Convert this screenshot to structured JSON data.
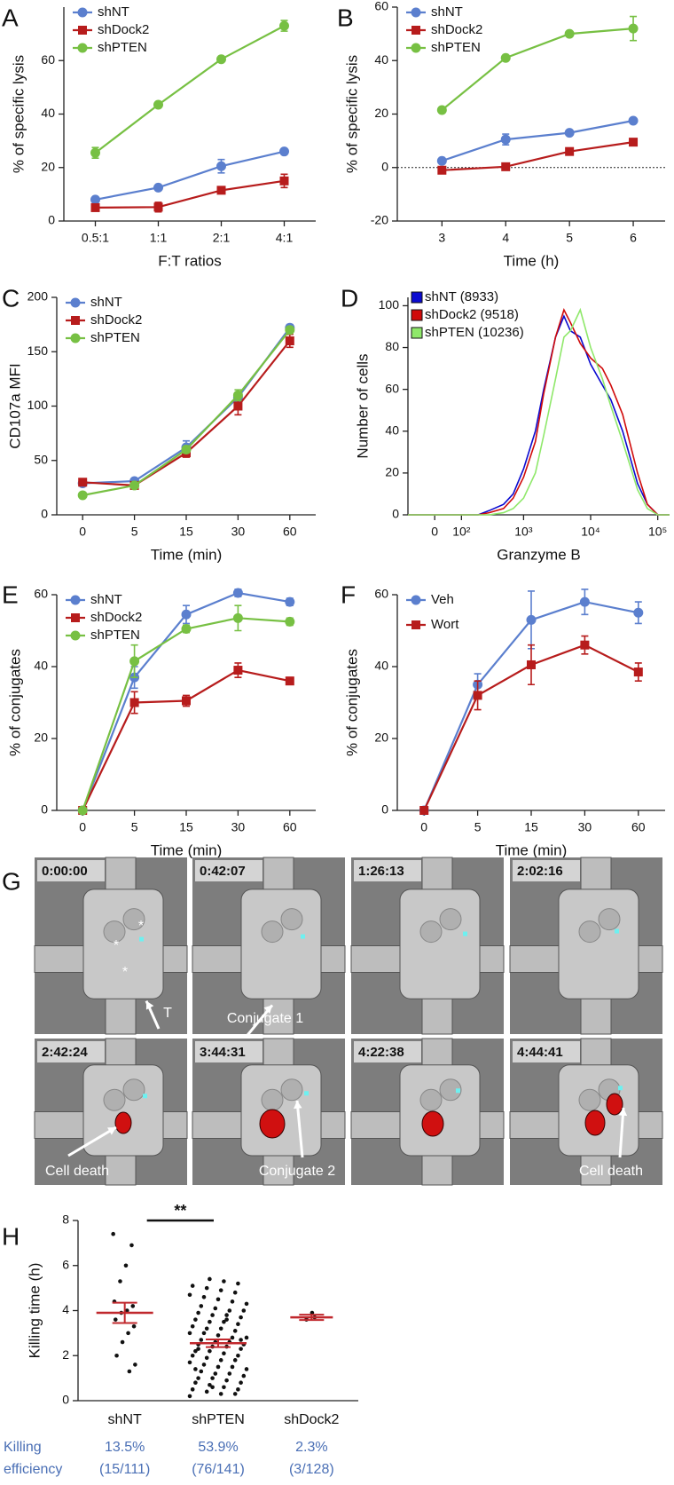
{
  "chart_data": [
    {
      "type": "line",
      "panel": "A",
      "ylabel": "% of specific lysis",
      "xlabel": "F:T ratios",
      "categories": [
        "0.5:1",
        "1:1",
        "2:1",
        "4:1"
      ],
      "ylim": [
        0,
        80
      ],
      "yticks": [
        0,
        20,
        40,
        60
      ],
      "legend": "upper left",
      "series": [
        {
          "name": "shNT",
          "color": "#5b7fce",
          "marker": "circle",
          "values": [
            8,
            12.5,
            20.5,
            26
          ],
          "errors": [
            1,
            1,
            2.5,
            1
          ]
        },
        {
          "name": "shDock2",
          "color": "#b71c1c",
          "marker": "square",
          "values": [
            5,
            5.2,
            11.5,
            15
          ],
          "errors": [
            1,
            1.8,
            1,
            2.5
          ]
        },
        {
          "name": "shPTEN",
          "color": "#77c043",
          "marker": "circle",
          "values": [
            25.5,
            43.5,
            60.5,
            73
          ],
          "errors": [
            2,
            0.8,
            0.8,
            2
          ]
        }
      ]
    },
    {
      "type": "line",
      "panel": "B",
      "ylabel": "% of specific lysis",
      "xlabel": "Time (h)",
      "x": [
        3,
        4,
        5,
        6
      ],
      "xlim": [
        2.3,
        6.5
      ],
      "xticks": [
        3,
        4,
        5,
        6
      ],
      "ylim": [
        -20,
        60
      ],
      "yticks": [
        -20,
        0,
        20,
        40,
        60
      ],
      "reference_line": 0,
      "legend": "upper left",
      "series": [
        {
          "name": "shNT",
          "color": "#5b7fce",
          "marker": "circle",
          "values": [
            2.5,
            10.5,
            13,
            17.5
          ],
          "errors": [
            0.5,
            2,
            0.5,
            0.5
          ]
        },
        {
          "name": "shDock2",
          "color": "#b71c1c",
          "marker": "square",
          "values": [
            -1,
            0.3,
            6,
            9.5
          ],
          "errors": [
            0.5,
            0.5,
            0.5,
            0.5
          ]
        },
        {
          "name": "shPTEN",
          "color": "#77c043",
          "marker": "circle",
          "values": [
            21.5,
            41,
            50,
            52
          ],
          "errors": [
            0.5,
            0.5,
            0.5,
            4.5
          ]
        }
      ]
    },
    {
      "type": "line",
      "panel": "C",
      "ylabel": "CD107a MFI",
      "xlabel": "Time (min)",
      "categories": [
        "0",
        "5",
        "15",
        "30",
        "60"
      ],
      "ylim": [
        0,
        200
      ],
      "yticks": [
        0,
        50,
        100,
        150,
        200
      ],
      "legend": "upper left",
      "series": [
        {
          "name": "shNT",
          "color": "#5b7fce",
          "marker": "circle",
          "values": [
            29,
            31,
            62,
            108,
            172
          ],
          "errors": [
            2,
            2,
            6,
            4,
            3
          ]
        },
        {
          "name": "shDock2",
          "color": "#b71c1c",
          "marker": "square",
          "values": [
            30,
            27,
            57,
            100,
            160
          ],
          "errors": [
            3,
            2,
            4,
            8,
            6
          ]
        },
        {
          "name": "shPTEN",
          "color": "#77c043",
          "marker": "circle",
          "values": [
            18,
            27,
            60,
            110,
            170
          ],
          "errors": [
            1,
            1,
            3,
            5,
            3
          ]
        }
      ]
    },
    {
      "type": "line",
      "panel": "D",
      "ylabel": "Number of cells",
      "xlabel": "Granzyme B",
      "xscale": "biexponential",
      "x": [
        -100,
        0,
        100,
        200,
        300,
        500,
        700,
        1000,
        1500,
        2000,
        3000,
        4000,
        5000,
        7000,
        10000,
        15000,
        20000,
        30000,
        50000,
        70000,
        100000,
        150000
      ],
      "xlim": [
        -100,
        150000
      ],
      "xticks": [
        0,
        {
          "value": 100,
          "label": "10²"
        },
        {
          "value": 1000,
          "label": "10³"
        },
        {
          "value": 10000,
          "label": "10⁴"
        },
        {
          "value": 100000,
          "label": "10⁵"
        }
      ],
      "ylim": [
        0,
        104
      ],
      "yticks": [
        0,
        20,
        40,
        60,
        80,
        100
      ],
      "legend": "upper left",
      "series": [
        {
          "name": "shNT (8933)",
          "color": "#0a0ad0",
          "values": [
            0,
            0,
            0,
            0,
            2,
            5,
            10,
            22,
            40,
            60,
            85,
            95,
            88,
            85,
            72,
            62,
            55,
            40,
            15,
            5,
            0,
            0
          ]
        },
        {
          "name": "shDock2 (9518)",
          "color": "#d00a0a",
          "values": [
            0,
            0,
            0,
            0,
            1,
            3,
            8,
            18,
            35,
            58,
            85,
            98,
            92,
            82,
            75,
            70,
            62,
            48,
            20,
            5,
            0,
            0
          ]
        },
        {
          "name": "shPTEN (10236)",
          "color": "#8fe86a",
          "values": [
            0,
            0,
            0,
            0,
            0,
            1,
            3,
            8,
            20,
            38,
            65,
            85,
            88,
            98,
            80,
            65,
            52,
            35,
            12,
            3,
            0,
            0
          ]
        }
      ]
    },
    {
      "type": "line",
      "panel": "E",
      "ylabel": "% of conjugates",
      "xlabel": "Time (min)",
      "categories": [
        "0",
        "5",
        "15",
        "30",
        "60"
      ],
      "ylim": [
        0,
        60
      ],
      "yticks": [
        0,
        20,
        40,
        60
      ],
      "legend": "upper left",
      "series": [
        {
          "name": "shNT",
          "color": "#5b7fce",
          "marker": "circle",
          "values": [
            0,
            37,
            54.5,
            60.5,
            58
          ],
          "errors": [
            0,
            3,
            2.5,
            1,
            1
          ]
        },
        {
          "name": "shDock2",
          "color": "#b71c1c",
          "marker": "square",
          "values": [
            0,
            30,
            30.5,
            39,
            36
          ],
          "errors": [
            0,
            3,
            1.5,
            2,
            1
          ]
        },
        {
          "name": "shPTEN",
          "color": "#77c043",
          "marker": "circle",
          "values": [
            0,
            41.5,
            50.5,
            53.5,
            52.5
          ],
          "errors": [
            0,
            4.5,
            1,
            3.5,
            1
          ]
        }
      ]
    },
    {
      "type": "line",
      "panel": "F",
      "ylabel": "% of conjugates",
      "xlabel": "Time (min)",
      "categories": [
        "0",
        "5",
        "15",
        "30",
        "60"
      ],
      "ylim": [
        0,
        60
      ],
      "yticks": [
        0,
        20,
        40,
        60
      ],
      "legend": "upper left",
      "series": [
        {
          "name": "Veh",
          "color": "#5b7fce",
          "marker": "circle",
          "values": [
            0,
            35,
            53,
            58,
            55
          ],
          "errors": [
            0,
            3,
            8,
            3.5,
            3
          ]
        },
        {
          "name": "Wort",
          "color": "#b71c1c",
          "marker": "square",
          "values": [
            0,
            32,
            40.5,
            46,
            38.5
          ],
          "errors": [
            0,
            4,
            5.5,
            2.5,
            2.5
          ]
        }
      ]
    },
    {
      "type": "dot",
      "panel": "H",
      "ylabel": "Killing time (h)",
      "categories": [
        "shNT",
        "shPTEN",
        "shDock2"
      ],
      "ylim": [
        0,
        8
      ],
      "yticks": [
        0,
        2,
        4,
        6,
        8
      ],
      "annotation": "**",
      "color": "#111111",
      "mean_color": "#c0282d",
      "groups": [
        [
          7.4,
          6.9,
          6.0,
          5.3,
          4.4,
          4.2,
          4.0,
          3.9,
          3.6,
          3.3,
          3.0,
          2.6,
          2.0,
          1.6,
          1.3
        ],
        [
          0.2,
          0.3,
          0.3,
          0.4,
          0.5,
          0.5,
          0.6,
          0.7,
          0.8,
          0.8,
          0.9,
          1.0,
          1.0,
          1.1,
          1.2,
          1.2,
          1.3,
          1.4,
          1.5,
          1.5,
          1.6,
          1.7,
          1.8,
          1.8,
          1.9,
          2.0,
          2.0,
          2.1,
          2.2,
          2.2,
          2.3,
          2.4,
          2.4,
          2.5,
          2.5,
          2.6,
          2.6,
          2.7,
          2.8,
          2.8,
          2.9,
          3.0,
          3.0,
          3.1,
          3.2,
          3.2,
          3.3,
          3.4,
          3.5,
          3.5,
          3.6,
          3.7,
          3.8,
          3.8,
          3.9,
          4.0,
          4.0,
          4.1,
          4.2,
          4.3,
          4.4,
          4.5,
          4.6,
          4.7,
          4.8,
          4.9,
          5.0,
          5.1,
          5.2,
          5.3,
          5.4,
          1.4,
          2.7,
          3.6,
          0.6,
          2.3
        ],
        [
          3.6,
          3.7,
          3.9
        ]
      ],
      "means": [
        3.9,
        2.55,
        3.7
      ],
      "sems": [
        0.45,
        0.17,
        0.12
      ],
      "efficiency_title": [
        "Killing",
        "efficiency"
      ],
      "efficiency": [
        "13.5%",
        "53.9%",
        "2.3%"
      ],
      "efficiency_counts": [
        "(15/111)",
        "(76/141)",
        "(3/128)"
      ]
    }
  ],
  "timelapse": {
    "panel": "G",
    "frames": [
      {
        "time": "0:00:00",
        "labels": [
          "*",
          "*",
          "*",
          "T"
        ]
      },
      {
        "time": "0:42:07",
        "labels": [
          "Conjugate 1"
        ]
      },
      {
        "time": "1:26:13"
      },
      {
        "time": "2:02:16"
      },
      {
        "time": "2:42:24",
        "labels": [
          "Cell death"
        ]
      },
      {
        "time": "3:44:31",
        "labels": [
          "Conjugate 2"
        ]
      },
      {
        "time": "4:22:38"
      },
      {
        "time": "4:44:41",
        "labels": [
          "Cell death"
        ]
      }
    ]
  }
}
